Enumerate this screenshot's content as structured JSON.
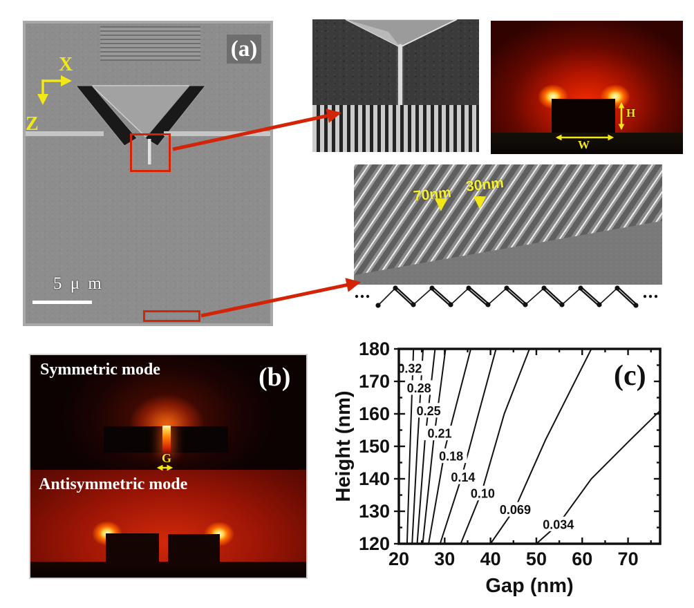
{
  "panel_a": {
    "label": "(a)",
    "x_axis_label": "X",
    "z_axis_label": "Z",
    "scale_bar_label": "5 μ m"
  },
  "inset_mode_profile": {
    "height_label": "H",
    "width_label": "W"
  },
  "inset_grating": {
    "pitch_label_70": "70nm",
    "pitch_label_30": "30nm"
  },
  "panel_b": {
    "label": "(b)",
    "symmetric_label": "Symmetric mode",
    "antisymmetric_label": "Antisymmetric mode",
    "gap_label": "G"
  },
  "panel_c": {
    "label": "(c)"
  },
  "colors": {
    "annotation_red": "#d42408",
    "annotation_yellow": "#f2e818",
    "contour_line": "#111111"
  },
  "chart_data": {
    "type": "contour",
    "title": "",
    "xlabel": "Gap (nm)",
    "ylabel": "Height (nm)",
    "xlim": [
      20,
      77
    ],
    "ylim": [
      120,
      180
    ],
    "x_major_ticks": [
      20,
      30,
      40,
      50,
      60,
      70
    ],
    "x_minor_ticks": [
      25,
      35,
      45,
      55,
      65,
      75
    ],
    "y_major_ticks": [
      120,
      130,
      140,
      150,
      160,
      170,
      180
    ],
    "y_minor_ticks": [
      125,
      135,
      145,
      155,
      165,
      175
    ],
    "grid": false,
    "legend": "none",
    "contours": [
      {
        "level": "0.32",
        "label_at": [
          22.4,
          174
        ],
        "points": [
          [
            21.8,
            120
          ],
          [
            22.5,
            152
          ],
          [
            23.2,
            180
          ]
        ]
      },
      {
        "level": "0.28",
        "label_at": [
          24.4,
          168
        ],
        "points": [
          [
            22.9,
            120
          ],
          [
            24.1,
            152
          ],
          [
            25.3,
            180
          ]
        ]
      },
      {
        "level": "0.25",
        "label_at": [
          26.5,
          161
        ],
        "points": [
          [
            24.0,
            120
          ],
          [
            25.7,
            152
          ],
          [
            27.9,
            180
          ]
        ]
      },
      {
        "level": "0.21",
        "label_at": [
          28.9,
          154
        ],
        "points": [
          [
            25.2,
            120
          ],
          [
            27.6,
            152
          ],
          [
            30.2,
            180
          ]
        ]
      },
      {
        "level": "0.18",
        "label_at": [
          31.4,
          147
        ],
        "points": [
          [
            26.5,
            120
          ],
          [
            30.2,
            150
          ],
          [
            35.7,
            180
          ]
        ]
      },
      {
        "level": "0.14",
        "label_at": [
          34.0,
          140.5
        ],
        "points": [
          [
            29.0,
            120
          ],
          [
            33.8,
            141
          ],
          [
            37.0,
            158
          ],
          [
            41.2,
            180
          ]
        ]
      },
      {
        "level": "0.10",
        "label_at": [
          38.3,
          135.5
        ],
        "points": [
          [
            33.5,
            120
          ],
          [
            38.1,
            136
          ],
          [
            43.0,
            160
          ],
          [
            48.5,
            180
          ]
        ]
      },
      {
        "level": "0.069",
        "label_at": [
          45.4,
          130.5
        ],
        "points": [
          [
            40.0,
            120
          ],
          [
            45.4,
            131
          ],
          [
            52.0,
            152
          ],
          [
            62.0,
            180
          ]
        ]
      },
      {
        "level": "0.034",
        "label_at": [
          54.8,
          126
        ],
        "points": [
          [
            50.0,
            120
          ],
          [
            54.8,
            126
          ],
          [
            62.0,
            140
          ],
          [
            70.5,
            152
          ],
          [
            77.0,
            161
          ]
        ]
      }
    ]
  }
}
